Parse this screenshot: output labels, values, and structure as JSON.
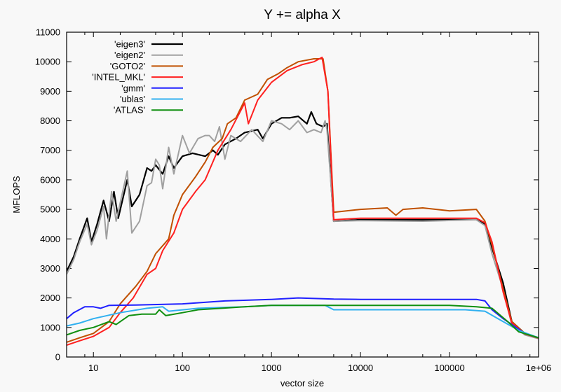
{
  "chart_data": {
    "type": "line",
    "title": "Y += alpha X",
    "xlabel": "vector size",
    "ylabel": "MFLOPS",
    "xscale": "log",
    "xlim": [
      5,
      1000000
    ],
    "ylim": [
      0,
      11000
    ],
    "xticks": [
      10,
      100,
      1000,
      10000,
      100000,
      1000000
    ],
    "xtick_labels": [
      "10",
      "100",
      "1000",
      "10000",
      "100000",
      "1e+06"
    ],
    "yticks": [
      0,
      1000,
      2000,
      3000,
      4000,
      5000,
      6000,
      7000,
      8000,
      9000,
      10000,
      11000
    ],
    "ytick_labels": [
      "0",
      "1000",
      "2000",
      "3000",
      "4000",
      "5000",
      "6000",
      "7000",
      "8000",
      "9000",
      "10000",
      "11000"
    ],
    "grid": false,
    "legend_position": "top-left",
    "series": [
      {
        "name": "'eigen3'",
        "color": "#000000",
        "width": 2.2,
        "points": [
          [
            5,
            2900
          ],
          [
            6,
            3400
          ],
          [
            7,
            4000
          ],
          [
            8.5,
            4700
          ],
          [
            9.5,
            3900
          ],
          [
            11,
            4500
          ],
          [
            13,
            5300
          ],
          [
            15,
            4600
          ],
          [
            17,
            5600
          ],
          [
            19,
            4700
          ],
          [
            24,
            6000
          ],
          [
            27,
            5100
          ],
          [
            33,
            5500
          ],
          [
            40,
            6400
          ],
          [
            45,
            6300
          ],
          [
            50,
            6500
          ],
          [
            60,
            6200
          ],
          [
            70,
            6800
          ],
          [
            80,
            6400
          ],
          [
            100,
            6800
          ],
          [
            130,
            6900
          ],
          [
            180,
            6800
          ],
          [
            220,
            7000
          ],
          [
            250,
            6850
          ],
          [
            300,
            7200
          ],
          [
            400,
            7400
          ],
          [
            500,
            7600
          ],
          [
            700,
            7700
          ],
          [
            800,
            7400
          ],
          [
            1000,
            7900
          ],
          [
            1300,
            8100
          ],
          [
            1600,
            8100
          ],
          [
            2000,
            8150
          ],
          [
            2500,
            7900
          ],
          [
            2800,
            8300
          ],
          [
            3200,
            7900
          ],
          [
            3800,
            7800
          ],
          [
            4200,
            7900
          ],
          [
            5000,
            4600
          ],
          [
            10000,
            4650
          ],
          [
            50000,
            4650
          ],
          [
            200000,
            4650
          ],
          [
            250000,
            4500
          ],
          [
            300000,
            3700
          ],
          [
            400000,
            2500
          ],
          [
            500000,
            1200
          ],
          [
            700000,
            800
          ],
          [
            1000000,
            650
          ]
        ]
      },
      {
        "name": "'eigen2'",
        "color": "#a0a0a0",
        "width": 2,
        "points": [
          [
            5,
            2800
          ],
          [
            6,
            3300
          ],
          [
            7,
            3900
          ],
          [
            8.5,
            4500
          ],
          [
            9.5,
            3800
          ],
          [
            11,
            4300
          ],
          [
            13,
            5100
          ],
          [
            14,
            4000
          ],
          [
            16,
            5600
          ],
          [
            18,
            4600
          ],
          [
            24,
            6300
          ],
          [
            27,
            4200
          ],
          [
            33,
            4600
          ],
          [
            40,
            5800
          ],
          [
            45,
            5900
          ],
          [
            50,
            6700
          ],
          [
            55,
            6500
          ],
          [
            60,
            5700
          ],
          [
            70,
            7100
          ],
          [
            80,
            6200
          ],
          [
            100,
            7500
          ],
          [
            120,
            6900
          ],
          [
            150,
            7400
          ],
          [
            180,
            7500
          ],
          [
            200,
            7500
          ],
          [
            230,
            7300
          ],
          [
            260,
            7800
          ],
          [
            300,
            6700
          ],
          [
            350,
            7500
          ],
          [
            450,
            7300
          ],
          [
            600,
            7700
          ],
          [
            800,
            7300
          ],
          [
            1000,
            8000
          ],
          [
            1300,
            7900
          ],
          [
            1600,
            7700
          ],
          [
            2000,
            8000
          ],
          [
            2500,
            7600
          ],
          [
            3000,
            7700
          ],
          [
            3600,
            7600
          ],
          [
            4000,
            8000
          ],
          [
            4200,
            7700
          ],
          [
            5000,
            4600
          ],
          [
            10000,
            4620
          ],
          [
            50000,
            4600
          ],
          [
            200000,
            4650
          ],
          [
            250000,
            4450
          ],
          [
            300000,
            3500
          ],
          [
            400000,
            2300
          ],
          [
            500000,
            1100
          ],
          [
            700000,
            750
          ],
          [
            1000000,
            620
          ]
        ]
      },
      {
        "name": "'GOTO2'",
        "color": "#c05000",
        "width": 2,
        "points": [
          [
            5,
            500
          ],
          [
            7,
            650
          ],
          [
            10,
            800
          ],
          [
            15,
            1200
          ],
          [
            20,
            1800
          ],
          [
            30,
            2400
          ],
          [
            40,
            2900
          ],
          [
            50,
            3500
          ],
          [
            70,
            4000
          ],
          [
            80,
            4800
          ],
          [
            100,
            5500
          ],
          [
            140,
            6100
          ],
          [
            180,
            6600
          ],
          [
            220,
            7100
          ],
          [
            280,
            7400
          ],
          [
            320,
            7900
          ],
          [
            400,
            8100
          ],
          [
            500,
            8700
          ],
          [
            700,
            8900
          ],
          [
            900,
            9400
          ],
          [
            1200,
            9600
          ],
          [
            1500,
            9800
          ],
          [
            2000,
            10000
          ],
          [
            3000,
            10100
          ],
          [
            3800,
            10100
          ],
          [
            4300,
            9000
          ],
          [
            5000,
            4900
          ],
          [
            10000,
            5000
          ],
          [
            20000,
            5050
          ],
          [
            25000,
            4800
          ],
          [
            30000,
            5000
          ],
          [
            50000,
            5050
          ],
          [
            100000,
            4950
          ],
          [
            200000,
            5000
          ],
          [
            250000,
            4600
          ],
          [
            300000,
            3800
          ],
          [
            400000,
            2300
          ],
          [
            500000,
            1200
          ],
          [
            700000,
            800
          ],
          [
            1000000,
            650
          ]
        ]
      },
      {
        "name": "'INTEL_MKL'",
        "color": "#ff2020",
        "width": 2,
        "points": [
          [
            5,
            400
          ],
          [
            7,
            550
          ],
          [
            10,
            700
          ],
          [
            15,
            1000
          ],
          [
            20,
            1500
          ],
          [
            28,
            2000
          ],
          [
            40,
            2800
          ],
          [
            50,
            3000
          ],
          [
            60,
            3600
          ],
          [
            80,
            4200
          ],
          [
            100,
            5000
          ],
          [
            140,
            5600
          ],
          [
            180,
            6000
          ],
          [
            250,
            7000
          ],
          [
            350,
            7700
          ],
          [
            500,
            8600
          ],
          [
            550,
            7900
          ],
          [
            700,
            8700
          ],
          [
            1000,
            9300
          ],
          [
            1500,
            9700
          ],
          [
            2200,
            9900
          ],
          [
            3000,
            10000
          ],
          [
            3700,
            10150
          ],
          [
            4300,
            9000
          ],
          [
            5000,
            4650
          ],
          [
            10000,
            4700
          ],
          [
            50000,
            4700
          ],
          [
            200000,
            4700
          ],
          [
            250000,
            4550
          ],
          [
            300000,
            3900
          ],
          [
            400000,
            2200
          ],
          [
            500000,
            1150
          ],
          [
            700000,
            780
          ],
          [
            1000000,
            640
          ]
        ]
      },
      {
        "name": "'gmm'",
        "color": "#2020ff",
        "width": 2,
        "points": [
          [
            5,
            1300
          ],
          [
            6,
            1500
          ],
          [
            8,
            1700
          ],
          [
            10,
            1700
          ],
          [
            12,
            1650
          ],
          [
            15,
            1750
          ],
          [
            30,
            1760
          ],
          [
            100,
            1800
          ],
          [
            300,
            1900
          ],
          [
            1000,
            1950
          ],
          [
            2000,
            2000
          ],
          [
            5000,
            1960
          ],
          [
            10000,
            1950
          ],
          [
            100000,
            1950
          ],
          [
            200000,
            1950
          ],
          [
            250000,
            1900
          ],
          [
            300000,
            1600
          ],
          [
            400000,
            1300
          ],
          [
            500000,
            1100
          ],
          [
            700000,
            800
          ],
          [
            1000000,
            650
          ]
        ]
      },
      {
        "name": "'ublas'",
        "color": "#30b0f0",
        "width": 2,
        "points": [
          [
            5,
            1050
          ],
          [
            7,
            1150
          ],
          [
            10,
            1300
          ],
          [
            20,
            1500
          ],
          [
            40,
            1650
          ],
          [
            60,
            1700
          ],
          [
            70,
            1550
          ],
          [
            150,
            1650
          ],
          [
            500,
            1700
          ],
          [
            1000,
            1750
          ],
          [
            4000,
            1750
          ],
          [
            5000,
            1600
          ],
          [
            20000,
            1600
          ],
          [
            150000,
            1600
          ],
          [
            250000,
            1550
          ],
          [
            350000,
            1300
          ],
          [
            600000,
            900
          ],
          [
            1000000,
            650
          ]
        ]
      },
      {
        "name": "'ATLAS'",
        "color": "#109010",
        "width": 2,
        "points": [
          [
            5,
            750
          ],
          [
            7,
            900
          ],
          [
            10,
            1000
          ],
          [
            15,
            1200
          ],
          [
            18,
            1100
          ],
          [
            25,
            1400
          ],
          [
            35,
            1450
          ],
          [
            50,
            1450
          ],
          [
            55,
            1600
          ],
          [
            65,
            1400
          ],
          [
            100,
            1500
          ],
          [
            150,
            1600
          ],
          [
            500,
            1700
          ],
          [
            1000,
            1750
          ],
          [
            4000,
            1750
          ],
          [
            10000,
            1750
          ],
          [
            100000,
            1750
          ],
          [
            200000,
            1700
          ],
          [
            300000,
            1650
          ],
          [
            450000,
            1200
          ],
          [
            600000,
            850
          ],
          [
            1000000,
            650
          ]
        ]
      }
    ]
  }
}
